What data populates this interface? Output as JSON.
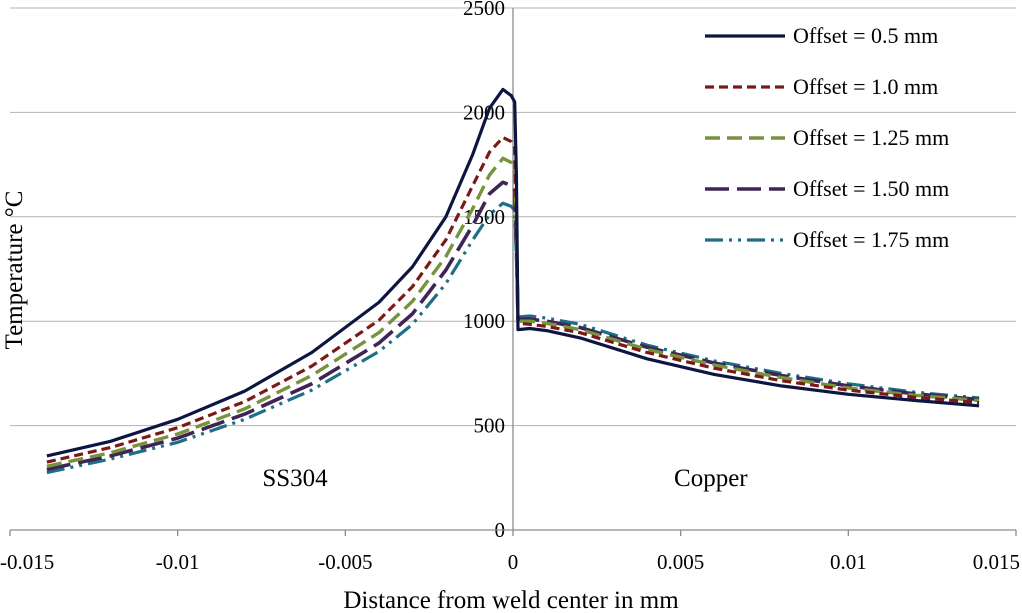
{
  "chart_data": {
    "type": "line",
    "xlabel": "Distance from weld center in mm",
    "ylabel": "Temperature °C",
    "xlim": [
      -0.015,
      0.015
    ],
    "ylim": [
      0,
      2500
    ],
    "x_ticks": [
      -0.015,
      -0.01,
      -0.005,
      0,
      0.005,
      0.01,
      0.015
    ],
    "x_tick_labels": [
      "-0.015",
      "-0.01",
      "-0.005",
      "0",
      "0.005",
      "0.01",
      "0.015"
    ],
    "y_ticks": [
      0,
      500,
      1000,
      1500,
      2000,
      2500
    ],
    "y_tick_labels": [
      "0",
      "500",
      "1000",
      "1500",
      "2000",
      "2500"
    ],
    "grid": "horizontal",
    "legend_position": "top-right",
    "annotations": [
      {
        "text": "SS304",
        "x": -0.0065,
        "y": 255
      },
      {
        "text": "Copper",
        "x": 0.0059,
        "y": 255
      }
    ],
    "series": [
      {
        "name": "Offset = 0.5 mm",
        "color": "#0d1640",
        "dash": "solid",
        "points": [
          [
            -0.0139,
            355
          ],
          [
            -0.012,
            425
          ],
          [
            -0.01,
            530
          ],
          [
            -0.008,
            665
          ],
          [
            -0.006,
            850
          ],
          [
            -0.004,
            1090
          ],
          [
            -0.003,
            1260
          ],
          [
            -0.002,
            1500
          ],
          [
            -0.0012,
            1800
          ],
          [
            -0.0007,
            2020
          ],
          [
            -0.0003,
            2110
          ],
          [
            -5e-05,
            2080
          ],
          [
            5e-05,
            2050
          ],
          [
            0.0001,
            1700
          ],
          [
            0.00015,
            960
          ],
          [
            0.0005,
            965
          ],
          [
            0.001,
            955
          ],
          [
            0.002,
            920
          ],
          [
            0.004,
            820
          ],
          [
            0.006,
            745
          ],
          [
            0.008,
            690
          ],
          [
            0.01,
            650
          ],
          [
            0.012,
            620
          ],
          [
            0.0139,
            595
          ]
        ]
      },
      {
        "name": "Offset = 1.0 mm",
        "color": "#7a1a18",
        "dash": "dashed",
        "points": [
          [
            -0.0139,
            325
          ],
          [
            -0.012,
            395
          ],
          [
            -0.01,
            490
          ],
          [
            -0.008,
            615
          ],
          [
            -0.006,
            785
          ],
          [
            -0.004,
            1005
          ],
          [
            -0.003,
            1165
          ],
          [
            -0.002,
            1390
          ],
          [
            -0.0012,
            1650
          ],
          [
            -0.0007,
            1810
          ],
          [
            -0.0003,
            1880
          ],
          [
            -5e-05,
            1860
          ],
          [
            5e-05,
            1830
          ],
          [
            0.0001,
            1500
          ],
          [
            0.00015,
            990
          ],
          [
            0.0005,
            985
          ],
          [
            0.001,
            975
          ],
          [
            0.002,
            945
          ],
          [
            0.004,
            850
          ],
          [
            0.006,
            775
          ],
          [
            0.008,
            715
          ],
          [
            0.01,
            670
          ],
          [
            0.012,
            635
          ],
          [
            0.0139,
            610
          ]
        ]
      },
      {
        "name": "Offset = 1.25 mm",
        "color": "#77933c",
        "dash": "longdash",
        "points": [
          [
            -0.0139,
            305
          ],
          [
            -0.012,
            370
          ],
          [
            -0.01,
            460
          ],
          [
            -0.008,
            580
          ],
          [
            -0.006,
            740
          ],
          [
            -0.004,
            945
          ],
          [
            -0.003,
            1095
          ],
          [
            -0.002,
            1310
          ],
          [
            -0.0012,
            1540
          ],
          [
            -0.0007,
            1700
          ],
          [
            -0.0003,
            1780
          ],
          [
            -5e-05,
            1760
          ],
          [
            5e-05,
            1740
          ],
          [
            0.0001,
            1450
          ],
          [
            0.00015,
            1000
          ],
          [
            0.0005,
            1000
          ],
          [
            0.001,
            990
          ],
          [
            0.002,
            960
          ],
          [
            0.004,
            865
          ],
          [
            0.006,
            790
          ],
          [
            0.008,
            730
          ],
          [
            0.01,
            680
          ],
          [
            0.012,
            645
          ],
          [
            0.0139,
            620
          ]
        ]
      },
      {
        "name": "Offset = 1.50 mm",
        "color": "#3f2456",
        "dash": "longerdash",
        "points": [
          [
            -0.0139,
            290
          ],
          [
            -0.012,
            355
          ],
          [
            -0.01,
            440
          ],
          [
            -0.008,
            555
          ],
          [
            -0.006,
            700
          ],
          [
            -0.004,
            895
          ],
          [
            -0.003,
            1035
          ],
          [
            -0.002,
            1245
          ],
          [
            -0.0012,
            1460
          ],
          [
            -0.0007,
            1610
          ],
          [
            -0.0003,
            1665
          ],
          [
            -5e-05,
            1650
          ],
          [
            5e-05,
            1630
          ],
          [
            0.0001,
            1350
          ],
          [
            0.00015,
            1010
          ],
          [
            0.0005,
            1010
          ],
          [
            0.001,
            1000
          ],
          [
            0.002,
            970
          ],
          [
            0.004,
            875
          ],
          [
            0.006,
            800
          ],
          [
            0.008,
            740
          ],
          [
            0.01,
            690
          ],
          [
            0.012,
            652
          ],
          [
            0.0139,
            625
          ]
        ]
      },
      {
        "name": "Offset = 1.75 mm",
        "color": "#1d6f86",
        "dash": "dashdotdot",
        "points": [
          [
            -0.0139,
            275
          ],
          [
            -0.012,
            340
          ],
          [
            -0.01,
            420
          ],
          [
            -0.008,
            530
          ],
          [
            -0.006,
            670
          ],
          [
            -0.004,
            855
          ],
          [
            -0.003,
            985
          ],
          [
            -0.002,
            1180
          ],
          [
            -0.0012,
            1390
          ],
          [
            -0.0007,
            1510
          ],
          [
            -0.0003,
            1565
          ],
          [
            -5e-05,
            1550
          ],
          [
            5e-05,
            1530
          ],
          [
            0.0001,
            1300
          ],
          [
            0.00015,
            1020
          ],
          [
            0.0005,
            1025
          ],
          [
            0.001,
            1015
          ],
          [
            0.002,
            985
          ],
          [
            0.004,
            885
          ],
          [
            0.006,
            810
          ],
          [
            0.008,
            750
          ],
          [
            0.01,
            700
          ],
          [
            0.012,
            660
          ],
          [
            0.0139,
            632
          ]
        ]
      }
    ]
  }
}
